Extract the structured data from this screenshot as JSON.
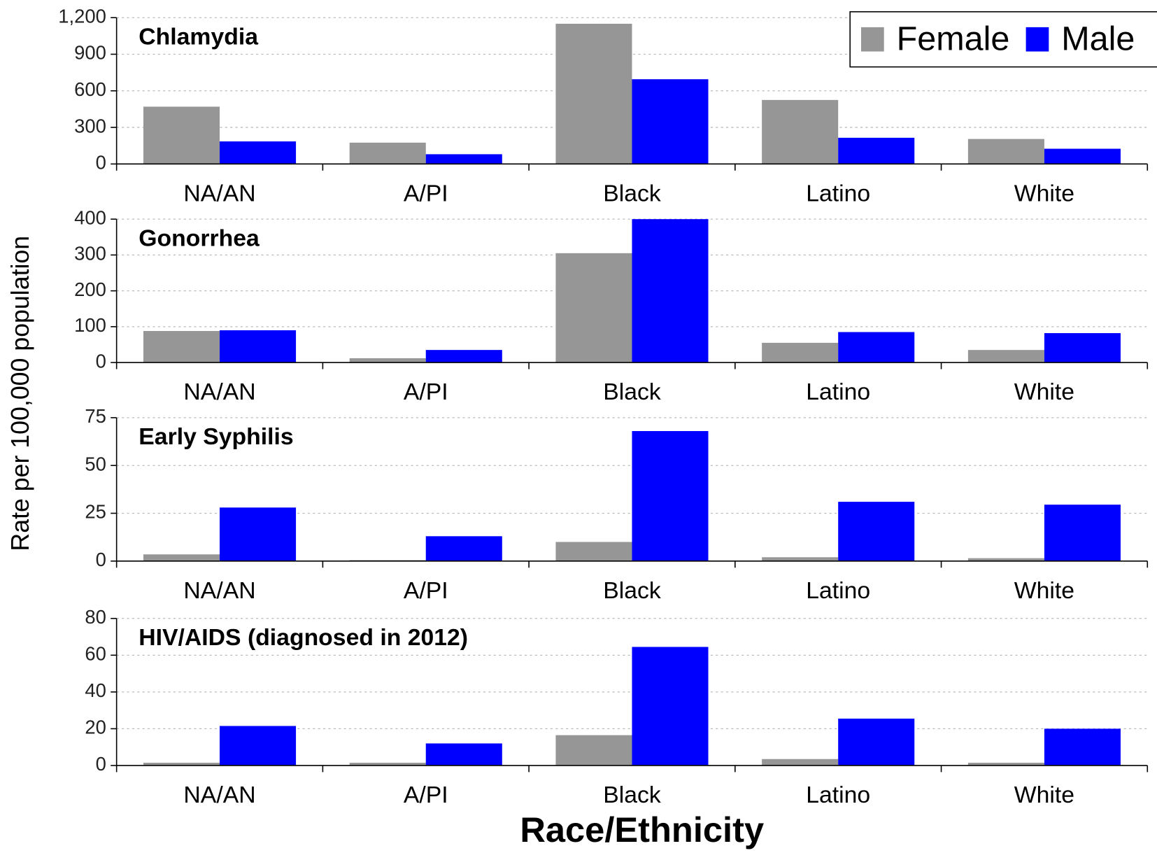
{
  "y_label": "Rate per 100,000 population",
  "x_label": "Race/Ethnicity",
  "chart_data": [
    {
      "type": "bar",
      "title": "Chlamydia",
      "categories": [
        "NA/AN",
        "A/PI",
        "Black",
        "Latino",
        "White"
      ],
      "series": [
        {
          "name": "Female",
          "color": "#969696",
          "values": [
            470,
            175,
            1150,
            525,
            205
          ]
        },
        {
          "name": "Male",
          "color": "#0000ff",
          "values": [
            185,
            80,
            695,
            215,
            125
          ]
        }
      ],
      "ylim": [
        0,
        1200
      ],
      "yticks": [
        0,
        300,
        600,
        900,
        {
          "value": 1200,
          "label": "1,200"
        }
      ],
      "grid": true,
      "legend": "upper right"
    },
    {
      "type": "bar",
      "title": "Gonorrhea",
      "categories": [
        "NA/AN",
        "A/PI",
        "Black",
        "Latino",
        "White"
      ],
      "series": [
        {
          "name": "Female",
          "color": "#969696",
          "values": [
            88,
            12,
            305,
            55,
            35
          ]
        },
        {
          "name": "Male",
          "color": "#0000ff",
          "values": [
            90,
            35,
            400,
            85,
            82
          ]
        }
      ],
      "ylim": [
        0,
        400
      ],
      "yticks": [
        0,
        100,
        200,
        300,
        400
      ],
      "grid": true
    },
    {
      "type": "bar",
      "title": "Early Syphilis",
      "categories": [
        "NA/AN",
        "A/PI",
        "Black",
        "Latino",
        "White"
      ],
      "series": [
        {
          "name": "Female",
          "color": "#969696",
          "values": [
            3.5,
            0.5,
            10,
            2,
            1.5
          ]
        },
        {
          "name": "Male",
          "color": "#0000ff",
          "values": [
            28,
            13,
            68,
            31,
            29.5
          ]
        }
      ],
      "ylim": [
        0,
        75
      ],
      "yticks": [
        0,
        25,
        50,
        75
      ],
      "grid": true
    },
    {
      "type": "bar",
      "title": "HIV/AIDS (diagnosed in 2012)",
      "categories": [
        "NA/AN",
        "A/PI",
        "Black",
        "Latino",
        "White"
      ],
      "series": [
        {
          "name": "Female",
          "color": "#969696",
          "values": [
            1.5,
            1.5,
            16.5,
            3.5,
            1.5
          ]
        },
        {
          "name": "Male",
          "color": "#0000ff",
          "values": [
            21.5,
            12,
            64.5,
            25.5,
            20
          ]
        }
      ],
      "ylim": [
        0,
        80
      ],
      "yticks": [
        0,
        20,
        40,
        60,
        80
      ],
      "grid": true
    }
  ]
}
